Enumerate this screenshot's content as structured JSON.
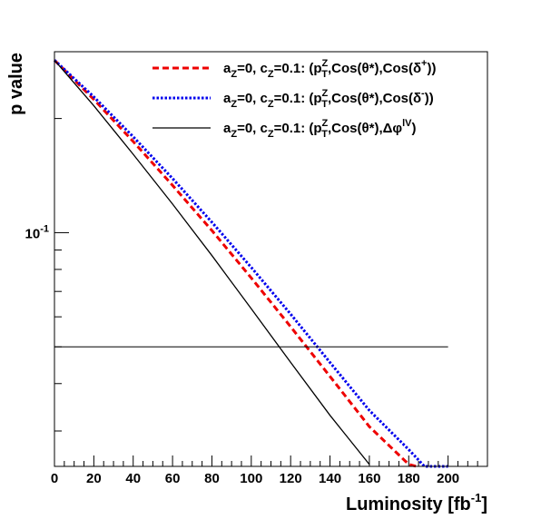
{
  "chart_data": {
    "type": "line",
    "xlabel": "Luminosity [fb",
    "xlabel_sup": "-1",
    "xlabel_close": "]",
    "ylabel": "p value",
    "xlim": [
      0,
      220
    ],
    "ylim": [
      0.0242,
      0.3
    ],
    "y_scale": "log",
    "x_ticks": [
      "0",
      "20",
      "40",
      "60",
      "80",
      "100",
      "120",
      "140",
      "160",
      "180",
      "200"
    ],
    "x_tick_values": [
      0,
      20,
      40,
      60,
      80,
      100,
      120,
      140,
      160,
      180,
      200
    ],
    "y_tick_label": {
      "base": "10",
      "exp": "-1"
    },
    "y_tick_value": 0.1,
    "grid": false,
    "legend_position": "top-right",
    "threshold": {
      "y": 0.05,
      "x_range": [
        0,
        200
      ]
    },
    "series": [
      {
        "name": "series_delta_plus",
        "legend": {
          "a": "a",
          "a_sub": "Z",
          "mid": "=0, c",
          "c_sub": "Z",
          "rest": "=0.1: (p",
          "p_sup": "Z",
          "p_sub": "T",
          "tail": ",Cos(θ*),Cos(δ",
          "tail_sup": "+",
          "end": "))"
        },
        "color": "#ee0000",
        "dash": "dashed",
        "x": [
          0,
          20,
          40,
          60,
          80,
          100,
          120,
          140,
          160,
          180,
          184
        ],
        "y": [
          0.285,
          0.2245,
          0.174,
          0.1333,
          0.1013,
          0.076,
          0.0565,
          0.0418,
          0.0308,
          0.0245,
          0.0242
        ]
      },
      {
        "name": "series_delta_minus",
        "legend": {
          "a": "a",
          "a_sub": "Z",
          "mid": "=0, c",
          "c_sub": "Z",
          "rest": "=0.1: (p",
          "p_sup": "Z",
          "p_sub": "T",
          "tail": ",Cos(θ*),Cos(δ",
          "tail_sup": "-",
          "end": "))"
        },
        "color": "#0000ee",
        "dash": "dotted",
        "x": [
          0,
          20,
          40,
          60,
          80,
          100,
          120,
          140,
          160,
          180,
          188,
          200
        ],
        "y": [
          0.285,
          0.228,
          0.179,
          0.139,
          0.1065,
          0.081,
          0.061,
          0.0455,
          0.034,
          0.0268,
          0.0242,
          0.0242
        ]
      },
      {
        "name": "series_delta_phi",
        "legend": {
          "a": "a",
          "a_sub": "Z",
          "mid": "=0, c",
          "c_sub": "Z",
          "rest": "=0.1: (p",
          "p_sup": "Z",
          "p_sub": "T",
          "tail": ",Cos(θ*),Δφ",
          "tail_sup": "lV",
          "end": ")"
        },
        "color": "#000000",
        "dash": "solid",
        "x": [
          0,
          20,
          40,
          60,
          80,
          100,
          120,
          140,
          160
        ],
        "y": [
          0.285,
          0.216,
          0.161,
          0.119,
          0.087,
          0.063,
          0.0455,
          0.033,
          0.0245
        ]
      }
    ]
  }
}
